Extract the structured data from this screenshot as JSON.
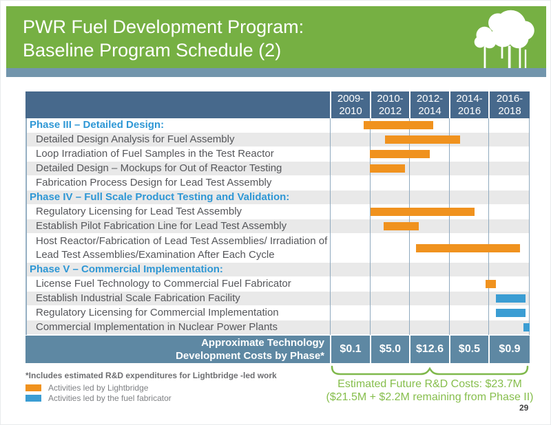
{
  "slide": {
    "title_line1": "PWR Fuel Development Program:",
    "title_line2": "Baseline Program Schedule (2)",
    "page_number": "29"
  },
  "colors": {
    "header_green": "#76B043",
    "accent_strip": "#7295AC",
    "table_header_blue": "#47698C",
    "cost_row_blue": "#5E88A3",
    "phase_text_blue": "#2E97D5",
    "lightbridge_orange": "#F0921E",
    "fabricator_blue": "#3B9DD3",
    "future_costs_green": "#86BE4C"
  },
  "table": {
    "columns": [
      {
        "line1": "2009-",
        "line2": "2010"
      },
      {
        "line1": "2010-",
        "line2": "2012"
      },
      {
        "line1": "2012-",
        "line2": "2014"
      },
      {
        "line1": "2014-",
        "line2": "2016"
      },
      {
        "line1": "2016-",
        "line2": "2018"
      }
    ],
    "rows": [
      {
        "kind": "phase",
        "label": "Phase III – Detailed Design:",
        "bar": {
          "start_pct": 16.9,
          "width_pct": 34.8,
          "color": "orange"
        }
      },
      {
        "kind": "activity",
        "label": "Detailed Design Analysis for Fuel Assembly",
        "bar": {
          "start_pct": 27.6,
          "width_pct": 37.6,
          "color": "orange"
        }
      },
      {
        "kind": "activity",
        "label": "Loop Irradiation of Fuel Samples in the Test Reactor",
        "bar": {
          "start_pct": 20.0,
          "width_pct": 30.0,
          "color": "orange"
        }
      },
      {
        "kind": "activity",
        "label": "Detailed Design – Mockups for Out of Reactor Testing",
        "bar": {
          "start_pct": 20.0,
          "width_pct": 17.6,
          "color": "orange"
        }
      },
      {
        "kind": "activity",
        "label": "Fabrication Process Design for Lead Test Assembly",
        "bar": null
      },
      {
        "kind": "phase",
        "label": "Phase IV – Full Scale Product Testing and Validation:",
        "bar": null
      },
      {
        "kind": "activity",
        "label": "Regulatory Licensing for Lead Test Assembly",
        "bar": {
          "start_pct": 20.3,
          "width_pct": 52.1,
          "color": "orange"
        }
      },
      {
        "kind": "activity",
        "label": "Establish Pilot Fabrication Line for Lead Test Assembly",
        "bar": {
          "start_pct": 26.9,
          "width_pct": 17.6,
          "color": "orange"
        }
      },
      {
        "kind": "activity",
        "tall": true,
        "label": "Host Reactor/Fabrication of Lead Test Assemblies/ Irradiation of Lead Test Assemblies/Examination After Each Cycle",
        "bar": {
          "start_pct": 43.1,
          "width_pct": 52.1,
          "color": "orange"
        }
      },
      {
        "kind": "phase",
        "label": "Phase V – Commercial Implementation:",
        "bar": null
      },
      {
        "kind": "activity",
        "label": "License Fuel Technology to Commercial Fuel Fabricator",
        "bar": {
          "start_pct": 77.9,
          "width_pct": 5.2,
          "color": "orange"
        }
      },
      {
        "kind": "activity",
        "label": "Establish Industrial Scale Fabrication Facility",
        "bar": {
          "start_pct": 83.1,
          "width_pct": 14.8,
          "color": "blue"
        }
      },
      {
        "kind": "activity",
        "label": "Regulatory Licensing for Commercial Implementation",
        "bar": {
          "start_pct": 83.1,
          "width_pct": 14.8,
          "color": "blue"
        }
      },
      {
        "kind": "activity",
        "label": "Commercial Implementation in Nuclear Power Plants",
        "bar": {
          "start_pct": 97.0,
          "width_pct": 3.0,
          "color": "blue"
        }
      }
    ],
    "cost_row": {
      "label_line1": "Approximate Technology",
      "label_line2": "Development Costs by Phase*",
      "values": [
        "$0.1",
        "$5.0",
        "$12.6",
        "$0.5",
        "$0.9"
      ]
    }
  },
  "footnote": "*Includes estimated R&D expenditures for Lightbridge -led work",
  "legend": [
    {
      "color": "orange",
      "label": "Activities led by Lightbridge"
    },
    {
      "color": "blue",
      "label": "Activities led by the fuel fabricator"
    }
  ],
  "future_costs": {
    "line1": "Estimated Future R&D Costs: $23.7M",
    "line2": "($21.5M + $2.2M remaining from Phase II)"
  },
  "chart_data": {
    "type": "gantt",
    "title": "PWR Fuel Development Program: Baseline Program Schedule (2)",
    "x_categories": [
      "2009-2010",
      "2010-2012",
      "2012-2014",
      "2014-2016",
      "2016-2018"
    ],
    "bars_timeline_pct": [
      {
        "label": "Phase III – Detailed Design:",
        "lead": "Lightbridge",
        "start_pct": 16.9,
        "end_pct": 51.7
      },
      {
        "label": "Detailed Design Analysis for Fuel Assembly",
        "lead": "Lightbridge",
        "start_pct": 27.6,
        "end_pct": 65.2
      },
      {
        "label": "Loop Irradiation of Fuel Samples in the Test Reactor",
        "lead": "Lightbridge",
        "start_pct": 20.0,
        "end_pct": 50.0
      },
      {
        "label": "Detailed Design – Mockups for Out of Reactor Testing",
        "lead": "Lightbridge",
        "start_pct": 20.0,
        "end_pct": 37.6
      },
      {
        "label": "Regulatory Licensing for Lead Test Assembly",
        "lead": "Lightbridge",
        "start_pct": 20.3,
        "end_pct": 72.4
      },
      {
        "label": "Establish Pilot Fabrication Line for Lead Test Assembly",
        "lead": "Lightbridge",
        "start_pct": 26.9,
        "end_pct": 44.5
      },
      {
        "label": "Host Reactor/Fabrication of Lead Test Assemblies/ Irradiation of Lead Test Assemblies/Examination After Each Cycle",
        "lead": "Lightbridge",
        "start_pct": 43.1,
        "end_pct": 95.2
      },
      {
        "label": "License Fuel Technology to Commercial Fuel Fabricator",
        "lead": "Lightbridge",
        "start_pct": 77.9,
        "end_pct": 83.1
      },
      {
        "label": "Establish Industrial Scale Fabrication Facility",
        "lead": "fuel fabricator",
        "start_pct": 83.1,
        "end_pct": 97.9
      },
      {
        "label": "Regulatory Licensing for Commercial Implementation",
        "lead": "fuel fabricator",
        "start_pct": 83.1,
        "end_pct": 97.9
      },
      {
        "label": "Commercial Implementation in Nuclear Power Plants",
        "lead": "fuel fabricator",
        "start_pct": 97.0,
        "end_pct": 100.0
      }
    ],
    "costs_by_phase": {
      "categories": [
        "2009-2010",
        "2010-2012",
        "2012-2014",
        "2014-2016",
        "2016-2018"
      ],
      "values": [
        0.1,
        5.0,
        12.6,
        0.5,
        0.9
      ],
      "unit": "$M"
    },
    "annotation": "Estimated Future R&D Costs: $23.7M ($21.5M + $2.2M remaining from Phase II)"
  }
}
